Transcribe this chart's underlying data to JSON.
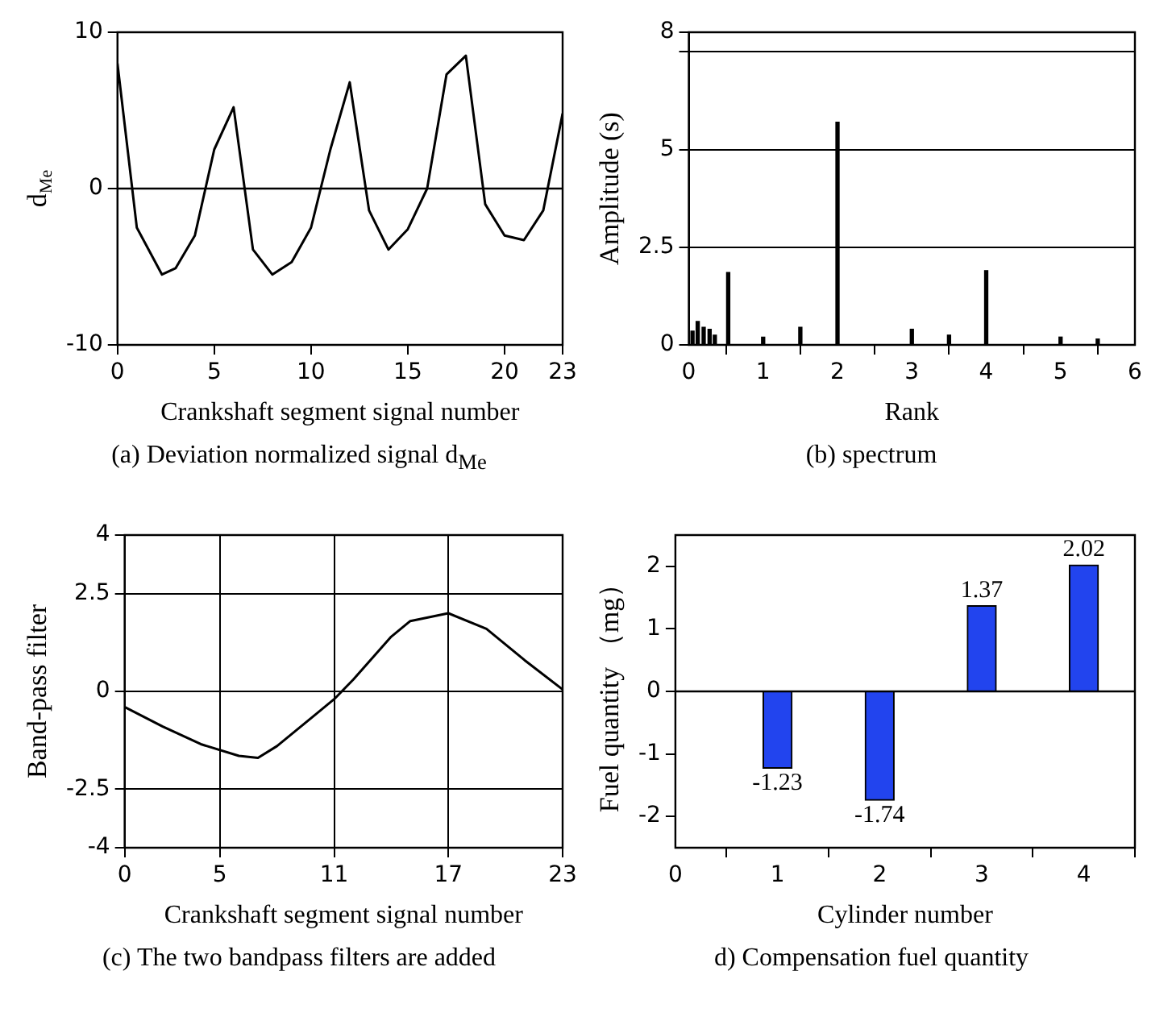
{
  "chart_data": [
    {
      "type": "line",
      "title": "(a) Deviation normalized signal d$_{Me}$",
      "xlabel": "Crankshaft segment signal number",
      "ylabel": "d$_{Me}$",
      "color": "#000000",
      "x": [
        0,
        1,
        2.3,
        3,
        4,
        5,
        6,
        7,
        8,
        9,
        10,
        11,
        12,
        13,
        14,
        15,
        16,
        17,
        18,
        19,
        20,
        21,
        22,
        23
      ],
      "values": [
        8,
        -2.5,
        -5.5,
        -5.1,
        -3,
        2.5,
        5.2,
        -3.9,
        -5.5,
        -4.7,
        -2.5,
        2.5,
        6.8,
        -1.4,
        -3.9,
        -2.6,
        0,
        7.3,
        8.5,
        -1,
        -3,
        -3.3,
        -1.4,
        4.8
      ],
      "xlim": [
        0,
        23
      ],
      "xticks": [
        0,
        5,
        10,
        15,
        20,
        23
      ],
      "ylim": [
        -10,
        10
      ],
      "yticks": [
        -10,
        0,
        10
      ],
      "ref_lines": [
        {
          "axis": "y",
          "value": 0
        }
      ]
    },
    {
      "type": "bar",
      "title": "(b) spectrum",
      "xlabel": "Rank",
      "ylabel": "Amplitude (s)",
      "color": "#000000",
      "x": [
        0.05,
        0.12,
        0.2,
        0.28,
        0.35,
        0.53,
        1,
        1.5,
        2,
        3,
        3.5,
        4,
        5,
        5.5
      ],
      "values": [
        0.35,
        0.6,
        0.45,
        0.4,
        0.25,
        1.85,
        0.2,
        0.45,
        5.7,
        0.4,
        0.25,
        1.9,
        0.2,
        0.15
      ],
      "xlim": [
        0,
        6
      ],
      "xticks": [
        0,
        1,
        2,
        3,
        4,
        5,
        6
      ],
      "ylim": [
        0,
        8
      ],
      "yticks": [
        0,
        2.5,
        5,
        {
          "value": 7.5,
          "label": null
        },
        8
      ],
      "grid": "y"
    },
    {
      "type": "line",
      "title": "(c) The two bandpass filters are added",
      "xlabel": "Crankshaft segment signal number",
      "ylabel": "Band-pass filter",
      "color": "#000000",
      "x": [
        0,
        2,
        4,
        6,
        7,
        8,
        10,
        11,
        12,
        14,
        15,
        17,
        19,
        21,
        23
      ],
      "values": [
        -0.4,
        -0.9,
        -1.35,
        -1.65,
        -1.7,
        -1.4,
        -0.6,
        -0.2,
        0.3,
        1.4,
        1.8,
        2,
        1.6,
        0.8,
        0.05
      ],
      "xlim": [
        0,
        23
      ],
      "xticks": [
        0,
        5,
        11,
        17,
        23
      ],
      "ylim": [
        -4,
        4
      ],
      "yticks": [
        -4,
        -2.5,
        0,
        2.5,
        4
      ],
      "grid": true
    },
    {
      "type": "bar",
      "title": "d) Compensation fuel quantity",
      "xlabel": "Cylinder number",
      "ylabel": "Fuel quantity （mg）",
      "color": "#2244ee",
      "x": [
        1,
        2,
        3,
        4
      ],
      "values": [
        -1.23,
        -1.74,
        1.37,
        2.02
      ],
      "data_labels": true,
      "xlim": [
        0,
        4.5
      ],
      "xticks": [
        0,
        1,
        2,
        3,
        4
      ],
      "ylim": [
        -2.5,
        2.5
      ],
      "yticks": [
        -2,
        -1,
        0,
        1,
        2
      ],
      "ref_lines": [
        {
          "axis": "y",
          "value": 0
        }
      ]
    }
  ]
}
